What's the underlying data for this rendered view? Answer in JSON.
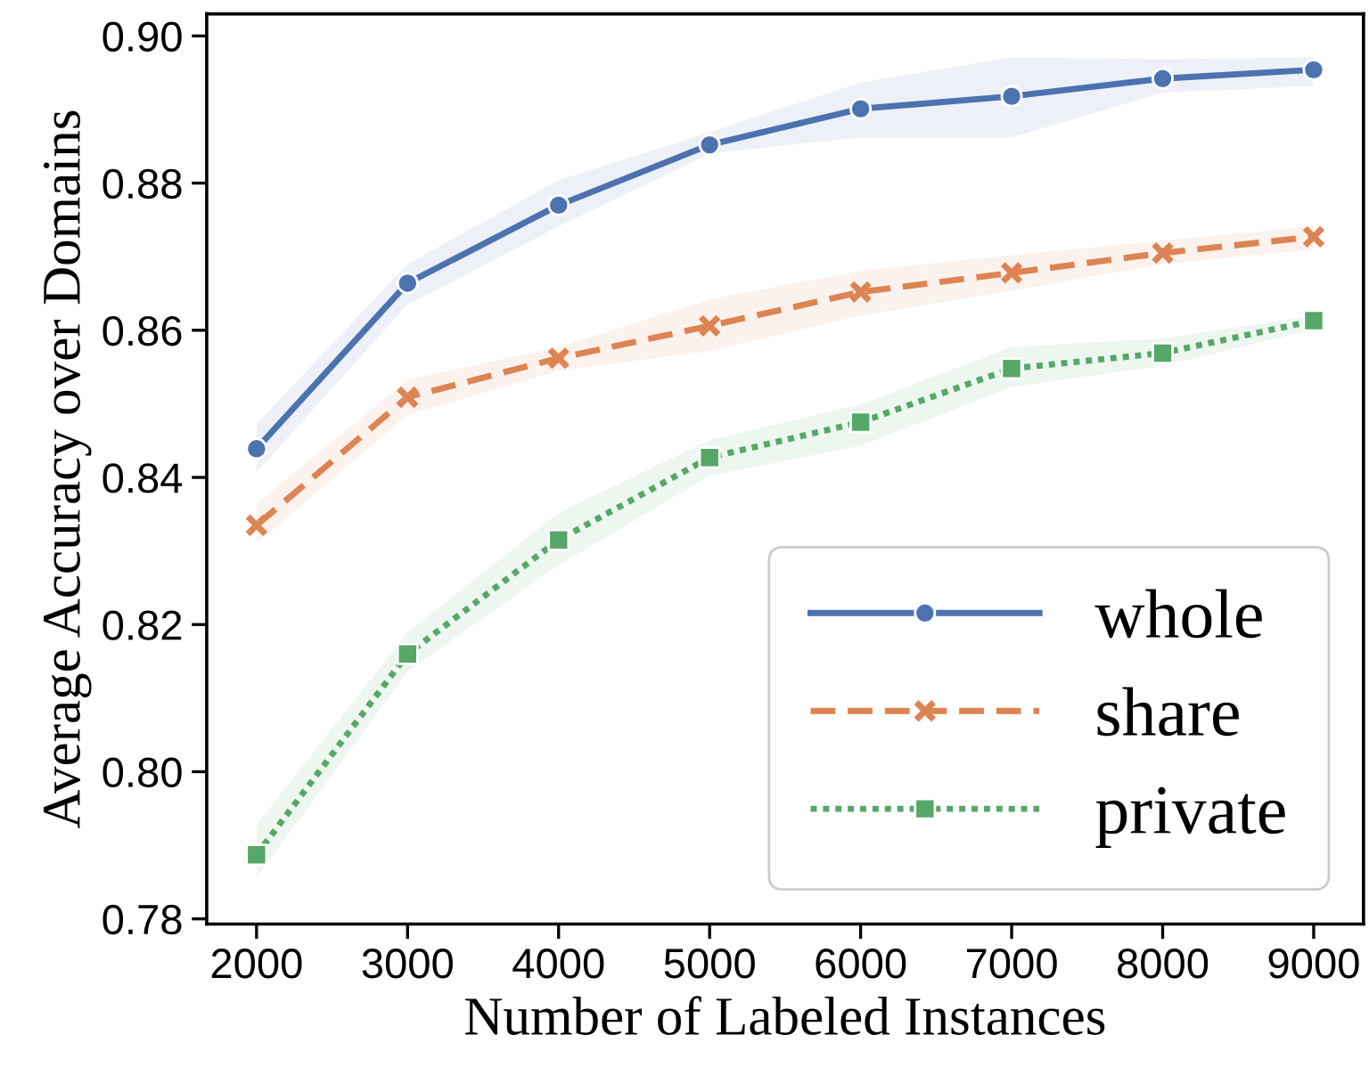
{
  "chart_data": {
    "type": "line",
    "xlabel": "Number of Labeled Instances",
    "ylabel": "Average Accuracy over Domains",
    "x": [
      2000,
      3000,
      4000,
      5000,
      6000,
      7000,
      8000,
      9000
    ],
    "series": [
      {
        "name": "whole",
        "color": "#4c72b0",
        "marker": "circle",
        "line_style": "solid",
        "values": [
          0.8439,
          0.8664,
          0.877,
          0.8852,
          0.8901,
          0.8918,
          0.8942,
          0.8954
        ],
        "lower": [
          0.8407,
          0.8635,
          0.8741,
          0.884,
          0.8862,
          0.8862,
          0.8923,
          0.8932
        ],
        "upper": [
          0.8473,
          0.869,
          0.8804,
          0.8869,
          0.8937,
          0.8971,
          0.8968,
          0.8971
        ]
      },
      {
        "name": "share",
        "color": "#dd8452",
        "marker": "cross",
        "line_style": "dashed",
        "values": [
          0.8335,
          0.8509,
          0.8562,
          0.8606,
          0.8652,
          0.8678,
          0.8705,
          0.8727
        ],
        "lower": [
          0.831,
          0.8485,
          0.8545,
          0.8572,
          0.862,
          0.8654,
          0.869,
          0.871
        ],
        "upper": [
          0.8364,
          0.8533,
          0.8577,
          0.8642,
          0.8681,
          0.8702,
          0.8722,
          0.8741
        ]
      },
      {
        "name": "private",
        "color": "#55a868",
        "marker": "square",
        "line_style": "dotted",
        "values": [
          0.7887,
          0.816,
          0.8315,
          0.8427,
          0.8475,
          0.8548,
          0.8569,
          0.8613
        ],
        "lower": [
          0.7856,
          0.8136,
          0.8281,
          0.8402,
          0.8443,
          0.8523,
          0.8552,
          0.8601
        ],
        "upper": [
          0.7928,
          0.8189,
          0.8352,
          0.8451,
          0.8499,
          0.8577,
          0.8589,
          0.862
        ]
      }
    ],
    "xlim": [
      1670,
      9330
    ],
    "ylim": [
      0.7793,
      0.903
    ],
    "xticks": [
      2000,
      3000,
      4000,
      5000,
      6000,
      7000,
      8000,
      9000
    ],
    "yticks": [
      {
        "value": 0.78,
        "label": "0.78"
      },
      {
        "value": 0.8,
        "label": "0.80"
      },
      {
        "value": 0.82,
        "label": "0.82"
      },
      {
        "value": 0.84,
        "label": "0.84"
      },
      {
        "value": 0.86,
        "label": "0.86"
      },
      {
        "value": 0.88,
        "label": "0.88"
      },
      {
        "value": 0.9,
        "label": "0.90"
      }
    ],
    "grid": false,
    "legend": "bottom right"
  }
}
